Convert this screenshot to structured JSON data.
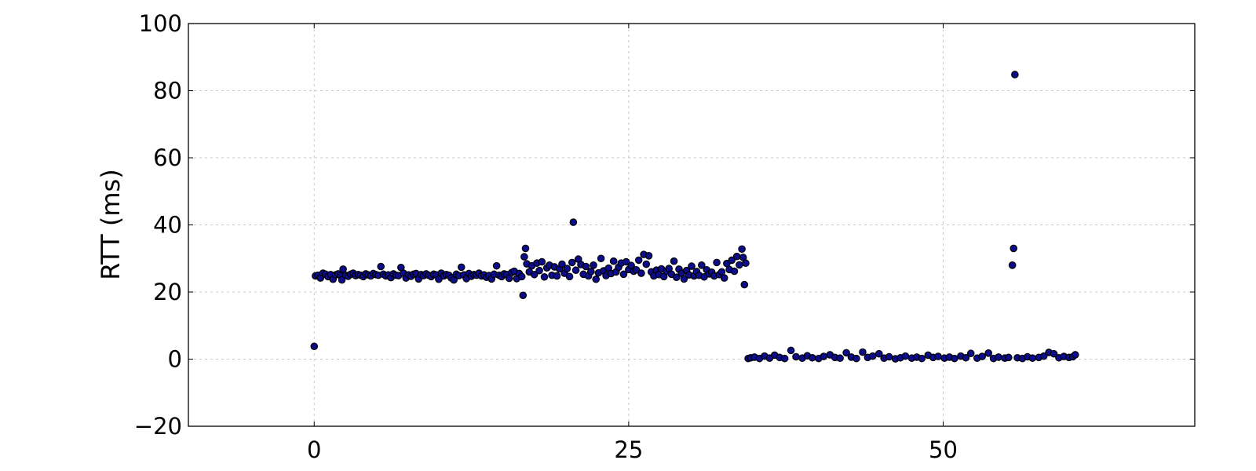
{
  "chart_data": {
    "type": "scatter",
    "title": "",
    "xlabel": "",
    "ylabel": "RTT (ms)",
    "xlim": [
      -10,
      70
    ],
    "ylim": [
      -20,
      100
    ],
    "xticks": [
      0,
      25,
      50
    ],
    "xtick_labels": [
      "0",
      "25",
      "50"
    ],
    "yticks": [
      -20,
      0,
      20,
      40,
      60,
      80,
      100
    ],
    "ytick_labels": [
      "−20",
      "0",
      "20",
      "40",
      "60",
      "80",
      "100"
    ],
    "grid": true,
    "marker_color": "#0d0d8c",
    "series": [
      {
        "points": [
          [
            0.0,
            3.8
          ],
          [
            0.1,
            24.8
          ],
          [
            0.3,
            25.0
          ],
          [
            0.5,
            24.2
          ],
          [
            0.7,
            25.6
          ],
          [
            0.9,
            25.3
          ],
          [
            1.1,
            24.6
          ],
          [
            1.3,
            25.2
          ],
          [
            1.5,
            23.8
          ],
          [
            1.7,
            25.1
          ],
          [
            1.9,
            25.4
          ],
          [
            2.1,
            24.9
          ],
          [
            2.2,
            23.6
          ],
          [
            2.3,
            26.8
          ],
          [
            2.5,
            25.0
          ],
          [
            2.7,
            24.7
          ],
          [
            2.9,
            25.3
          ],
          [
            3.1,
            25.6
          ],
          [
            3.3,
            24.9
          ],
          [
            3.5,
            25.2
          ],
          [
            3.7,
            25.0
          ],
          [
            3.9,
            24.6
          ],
          [
            4.1,
            25.4
          ],
          [
            4.3,
            25.1
          ],
          [
            4.5,
            24.8
          ],
          [
            4.7,
            25.5
          ],
          [
            4.9,
            25.2
          ],
          [
            5.1,
            25.0
          ],
          [
            5.3,
            27.6
          ],
          [
            5.5,
            25.3
          ],
          [
            5.7,
            24.8
          ],
          [
            5.9,
            25.1
          ],
          [
            6.1,
            24.3
          ],
          [
            6.3,
            25.4
          ],
          [
            6.5,
            25.0
          ],
          [
            6.7,
            24.9
          ],
          [
            6.9,
            27.3
          ],
          [
            7.1,
            25.6
          ],
          [
            7.3,
            24.2
          ],
          [
            7.5,
            25.1
          ],
          [
            7.7,
            24.7
          ],
          [
            7.9,
            25.3
          ],
          [
            8.1,
            25.5
          ],
          [
            8.3,
            23.9
          ],
          [
            8.5,
            25.2
          ],
          [
            8.7,
            24.9
          ],
          [
            8.9,
            25.4
          ],
          [
            9.1,
            25.0
          ],
          [
            9.3,
            24.6
          ],
          [
            9.5,
            25.3
          ],
          [
            9.7,
            25.1
          ],
          [
            9.9,
            23.8
          ],
          [
            10.1,
            25.6
          ],
          [
            10.3,
            24.8
          ],
          [
            10.5,
            25.2
          ],
          [
            10.7,
            25.0
          ],
          [
            10.9,
            24.2
          ],
          [
            11.1,
            23.6
          ],
          [
            11.3,
            25.3
          ],
          [
            11.5,
            24.9
          ],
          [
            11.7,
            27.4
          ],
          [
            11.9,
            25.1
          ],
          [
            12.1,
            24.0
          ],
          [
            12.3,
            25.5
          ],
          [
            12.5,
            24.7
          ],
          [
            12.7,
            25.2
          ],
          [
            12.9,
            25.0
          ],
          [
            13.1,
            25.6
          ],
          [
            13.3,
            24.8
          ],
          [
            13.5,
            25.1
          ],
          [
            13.7,
            24.4
          ],
          [
            13.9,
            24.9
          ],
          [
            14.1,
            23.9
          ],
          [
            14.3,
            25.3
          ],
          [
            14.5,
            27.8
          ],
          [
            14.7,
            25.0
          ],
          [
            14.9,
            24.6
          ],
          [
            15.1,
            25.4
          ],
          [
            15.3,
            25.2
          ],
          [
            15.5,
            24.1
          ],
          [
            15.7,
            25.8
          ],
          [
            15.9,
            26.2
          ],
          [
            16.1,
            24.0
          ],
          [
            16.3,
            25.5
          ],
          [
            16.5,
            24.6
          ],
          [
            16.6,
            19.0
          ],
          [
            16.7,
            30.5
          ],
          [
            16.8,
            33.0
          ],
          [
            16.9,
            28.4
          ],
          [
            17.1,
            26.0
          ],
          [
            17.3,
            27.8
          ],
          [
            17.5,
            25.2
          ],
          [
            17.7,
            28.6
          ],
          [
            17.9,
            26.4
          ],
          [
            18.1,
            29.0
          ],
          [
            18.3,
            24.5
          ],
          [
            18.5,
            27.2
          ],
          [
            18.7,
            28.0
          ],
          [
            18.9,
            25.0
          ],
          [
            19.1,
            27.5
          ],
          [
            19.3,
            24.8
          ],
          [
            19.5,
            26.9
          ],
          [
            19.7,
            28.3
          ],
          [
            19.9,
            25.6
          ],
          [
            20.1,
            27.0
          ],
          [
            20.3,
            24.6
          ],
          [
            20.5,
            28.8
          ],
          [
            20.6,
            40.8
          ],
          [
            20.8,
            26.5
          ],
          [
            21.0,
            29.8
          ],
          [
            21.2,
            28.2
          ],
          [
            21.4,
            25.3
          ],
          [
            21.6,
            27.6
          ],
          [
            21.8,
            24.8
          ],
          [
            22.0,
            26.1
          ],
          [
            22.2,
            28.0
          ],
          [
            22.4,
            23.8
          ],
          [
            22.6,
            25.7
          ],
          [
            22.8,
            30.0
          ],
          [
            23.0,
            26.3
          ],
          [
            23.2,
            24.9
          ],
          [
            23.4,
            27.1
          ],
          [
            23.6,
            25.5
          ],
          [
            23.8,
            29.2
          ],
          [
            24.0,
            26.0
          ],
          [
            24.2,
            27.4
          ],
          [
            24.4,
            28.6
          ],
          [
            24.6,
            25.3
          ],
          [
            24.8,
            29.0
          ],
          [
            25.0,
            26.7
          ],
          [
            25.2,
            27.9
          ],
          [
            25.4,
            26.2
          ],
          [
            25.6,
            26.6
          ],
          [
            25.8,
            29.5
          ],
          [
            26.0,
            25.6
          ],
          [
            26.2,
            31.2
          ],
          [
            26.4,
            28.3
          ],
          [
            26.6,
            30.8
          ],
          [
            26.8,
            26.0
          ],
          [
            27.0,
            24.8
          ],
          [
            27.2,
            26.5
          ],
          [
            27.4,
            25.2
          ],
          [
            27.6,
            26.9
          ],
          [
            27.8,
            24.6
          ],
          [
            28.0,
            26.2
          ],
          [
            28.2,
            27.0
          ],
          [
            28.4,
            25.3
          ],
          [
            28.6,
            29.2
          ],
          [
            28.8,
            24.4
          ],
          [
            29.0,
            26.8
          ],
          [
            29.2,
            25.6
          ],
          [
            29.4,
            23.9
          ],
          [
            29.6,
            26.4
          ],
          [
            29.8,
            25.1
          ],
          [
            30.0,
            27.7
          ],
          [
            30.2,
            24.8
          ],
          [
            30.4,
            26.1
          ],
          [
            30.6,
            25.0
          ],
          [
            30.8,
            28.0
          ],
          [
            31.0,
            24.5
          ],
          [
            31.2,
            26.6
          ],
          [
            31.4,
            25.4
          ],
          [
            31.6,
            25.9
          ],
          [
            31.8,
            24.8
          ],
          [
            32.0,
            28.8
          ],
          [
            32.2,
            25.2
          ],
          [
            32.4,
            26.0
          ],
          [
            32.6,
            24.2
          ],
          [
            32.8,
            28.5
          ],
          [
            33.0,
            26.7
          ],
          [
            33.2,
            29.5
          ],
          [
            33.4,
            26.2
          ],
          [
            33.6,
            30.6
          ],
          [
            33.8,
            28.1
          ],
          [
            34.0,
            32.8
          ],
          [
            34.1,
            30.3
          ],
          [
            34.2,
            22.2
          ],
          [
            34.3,
            28.6
          ],
          [
            34.5,
            0.2
          ],
          [
            34.7,
            0.4
          ],
          [
            35.0,
            0.6
          ],
          [
            35.4,
            0.2
          ],
          [
            35.8,
            0.9
          ],
          [
            36.2,
            0.3
          ],
          [
            36.6,
            1.2
          ],
          [
            37.0,
            0.5
          ],
          [
            37.4,
            0.2
          ],
          [
            37.9,
            2.6
          ],
          [
            38.3,
            0.7
          ],
          [
            38.8,
            0.3
          ],
          [
            39.2,
            1.0
          ],
          [
            39.6,
            0.4
          ],
          [
            40.1,
            0.2
          ],
          [
            40.5,
            0.8
          ],
          [
            41.0,
            1.3
          ],
          [
            41.4,
            0.5
          ],
          [
            41.8,
            0.3
          ],
          [
            42.3,
            1.9
          ],
          [
            42.7,
            0.6
          ],
          [
            43.1,
            0.2
          ],
          [
            43.6,
            2.1
          ],
          [
            44.0,
            0.5
          ],
          [
            44.4,
            0.9
          ],
          [
            44.9,
            1.6
          ],
          [
            45.3,
            0.3
          ],
          [
            45.7,
            0.7
          ],
          [
            46.2,
            0.1
          ],
          [
            46.6,
            0.4
          ],
          [
            47.0,
            0.9
          ],
          [
            47.5,
            0.3
          ],
          [
            47.9,
            0.6
          ],
          [
            48.3,
            0.2
          ],
          [
            48.8,
            1.2
          ],
          [
            49.2,
            0.5
          ],
          [
            49.6,
            0.8
          ],
          [
            50.1,
            0.3
          ],
          [
            50.5,
            0.6
          ],
          [
            50.9,
            0.2
          ],
          [
            51.4,
            0.9
          ],
          [
            51.8,
            0.4
          ],
          [
            52.2,
            1.7
          ],
          [
            52.7,
            0.3
          ],
          [
            53.1,
            0.8
          ],
          [
            53.6,
            1.8
          ],
          [
            54.0,
            0.2
          ],
          [
            54.4,
            0.6
          ],
          [
            54.9,
            0.3
          ],
          [
            55.2,
            0.5
          ],
          [
            55.5,
            28.0
          ],
          [
            55.6,
            33.0
          ],
          [
            55.7,
            84.8
          ],
          [
            55.9,
            0.4
          ],
          [
            56.3,
            0.2
          ],
          [
            56.7,
            0.7
          ],
          [
            57.1,
            0.3
          ],
          [
            57.6,
            0.5
          ],
          [
            58.0,
            0.9
          ],
          [
            58.4,
            2.0
          ],
          [
            58.8,
            1.6
          ],
          [
            59.2,
            0.4
          ],
          [
            59.6,
            0.8
          ],
          [
            60.0,
            0.5
          ],
          [
            60.3,
            0.7
          ],
          [
            60.5,
            1.3
          ]
        ]
      }
    ]
  }
}
